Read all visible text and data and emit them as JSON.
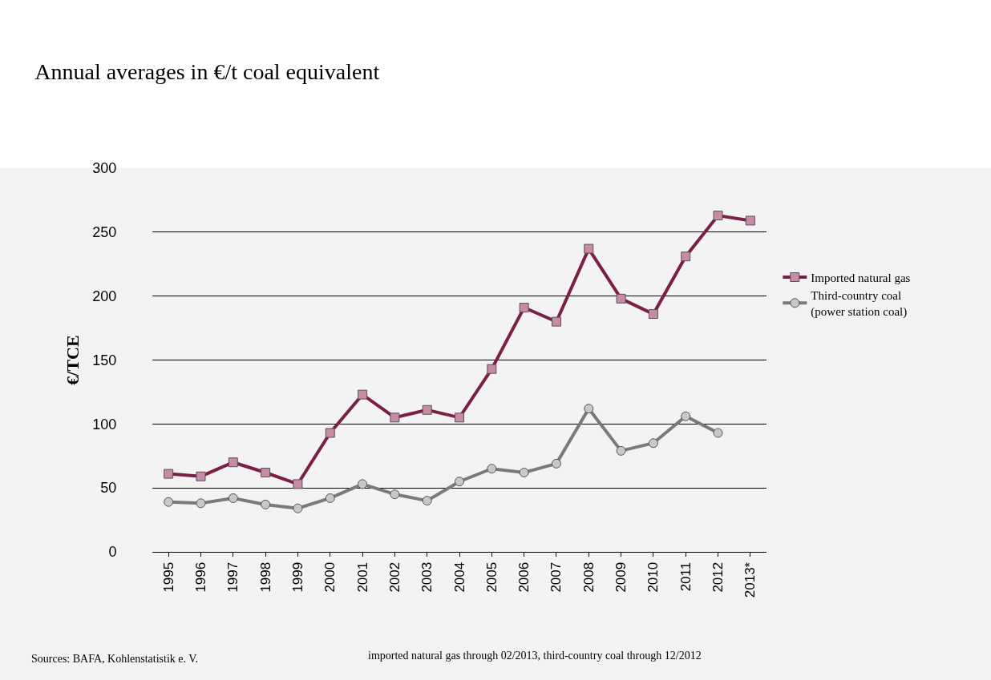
{
  "chart_data": {
    "type": "line",
    "title": "Annual averages in €/t coal equivalent",
    "ylabel": "€/TCE",
    "categories": [
      "1995",
      "1996",
      "1997",
      "1998",
      "1999",
      "2000",
      "2001",
      "2002",
      "2003",
      "2004",
      "2005",
      "2006",
      "2007",
      "2008",
      "2009",
      "2010",
      "2011",
      "2012",
      "2013*"
    ],
    "series": [
      {
        "name": "Imported natural gas",
        "color": "#7b1f47",
        "marker": "square",
        "values": [
          61,
          59,
          70,
          62,
          53,
          93,
          123,
          105,
          111,
          105,
          143,
          191,
          180,
          237,
          198,
          186,
          231,
          263,
          259
        ]
      },
      {
        "name": "Third-country coal\n(power station coal)",
        "color": "#7a7a7a",
        "marker": "circle",
        "values": [
          39,
          38,
          42,
          37,
          34,
          42,
          53,
          45,
          40,
          55,
          65,
          62,
          69,
          112,
          79,
          85,
          106,
          93,
          null
        ]
      }
    ],
    "ylim": [
      0,
      300
    ],
    "yticks": [
      0,
      50,
      100,
      150,
      200,
      250,
      300
    ],
    "grid": "y",
    "legend": "right",
    "line_style": "solid",
    "annotations": [
      "Sources: BAFA, Kohlenstatistik e. V.",
      "imported natural gas through 02/2013, third-country coal through 12/2012"
    ]
  }
}
